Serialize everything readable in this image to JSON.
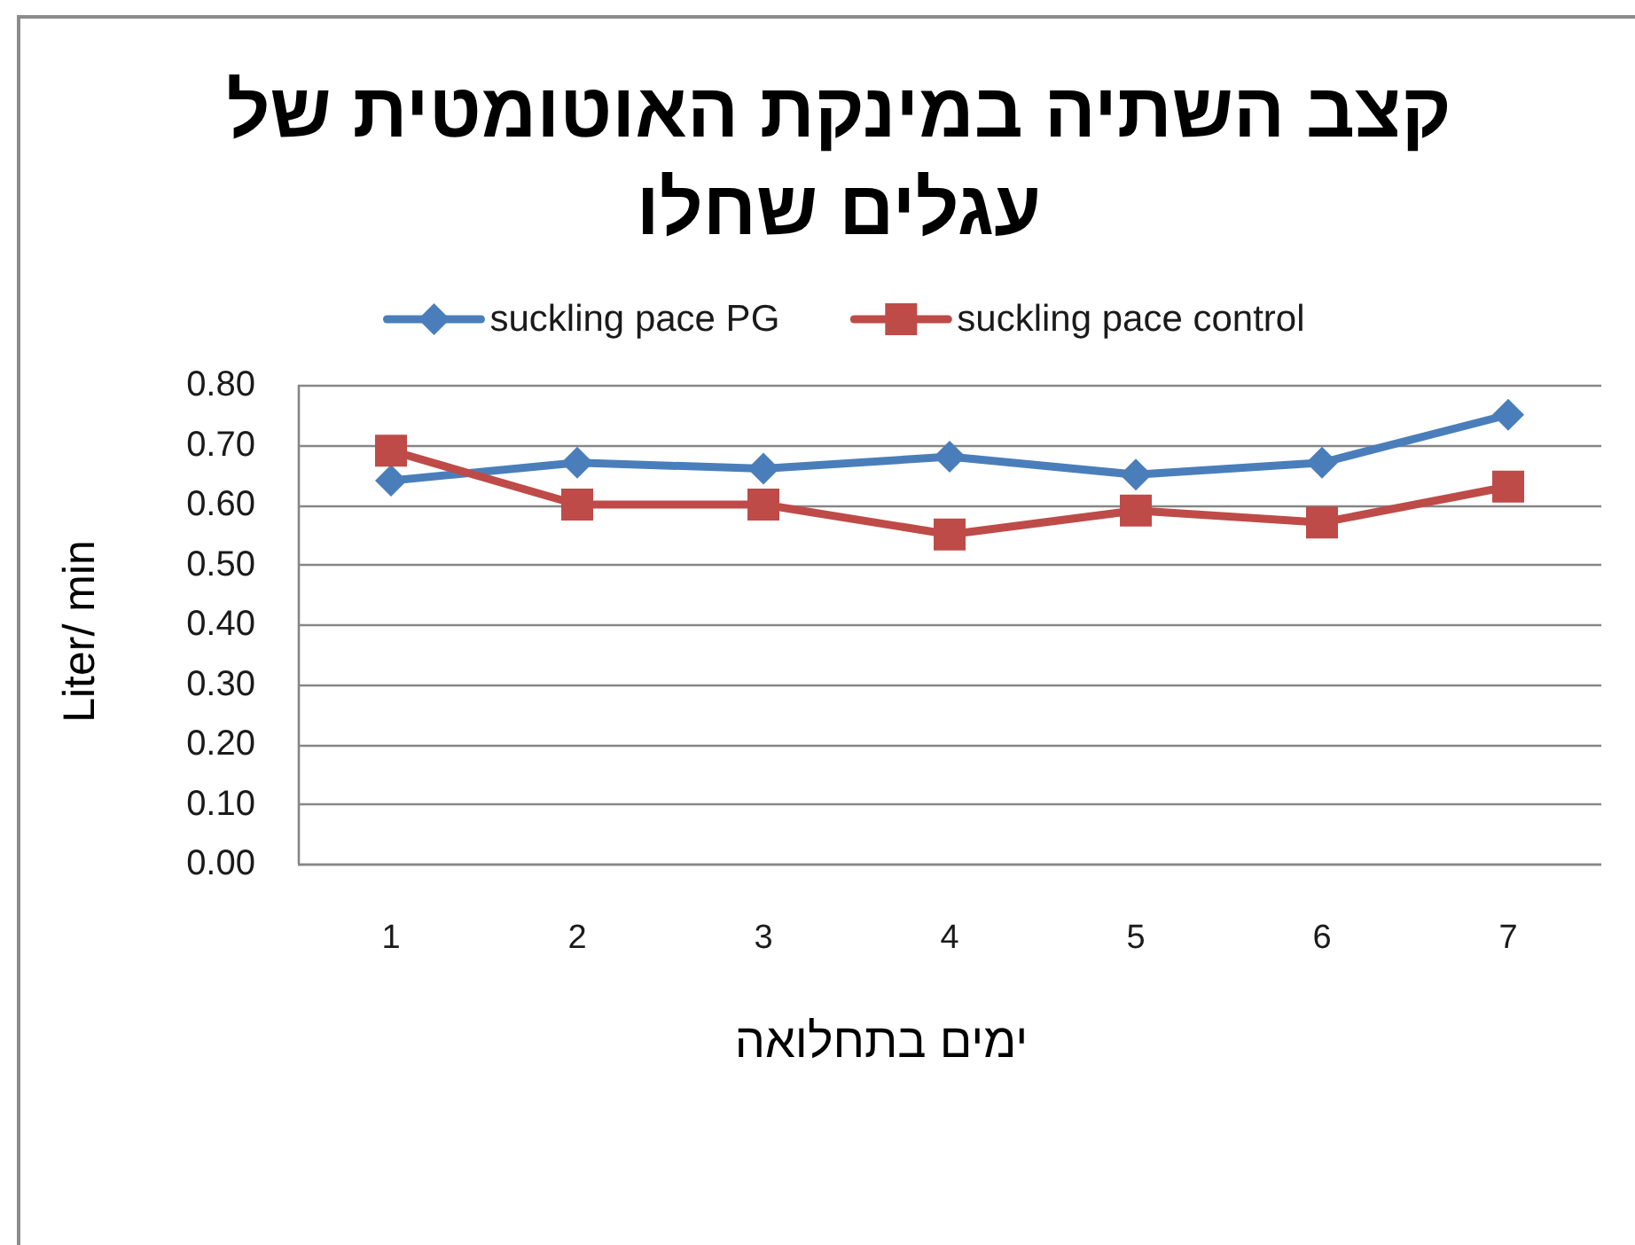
{
  "chart_data": {
    "type": "line",
    "title": "קצב השתיה במינקת האוטומטית של עגלים שחלו",
    "xlabel": "ימים בתחלואה",
    "ylabel": "Liter/ min",
    "categories": [
      "1",
      "2",
      "3",
      "4",
      "5",
      "6",
      "7"
    ],
    "series": [
      {
        "name": "suckling pace PG",
        "color": "#4a7ebb",
        "marker": "diamond",
        "values": [
          0.64,
          0.67,
          0.66,
          0.68,
          0.65,
          0.67,
          0.75
        ]
      },
      {
        "name": "suckling pace control",
        "color": "#be4b48",
        "marker": "square",
        "values": [
          0.69,
          0.6,
          0.6,
          0.55,
          0.59,
          0.57,
          0.63
        ]
      }
    ],
    "ylim": [
      0,
      0.8
    ],
    "yticks": [
      {
        "value": 0,
        "label": "0.00"
      },
      {
        "value": 0.1,
        "label": "0.10"
      },
      {
        "value": 0.2,
        "label": "0.20"
      },
      {
        "value": 0.3,
        "label": "0.30"
      },
      {
        "value": 0.4,
        "label": "0.40"
      },
      {
        "value": 0.5,
        "label": "0.50"
      },
      {
        "value": 0.6,
        "label": "0.60"
      },
      {
        "value": 0.7,
        "label": "0.70"
      },
      {
        "value": 0.8,
        "label": "0.80"
      }
    ],
    "grid": "y",
    "legend": "top",
    "line_style": "solid"
  }
}
